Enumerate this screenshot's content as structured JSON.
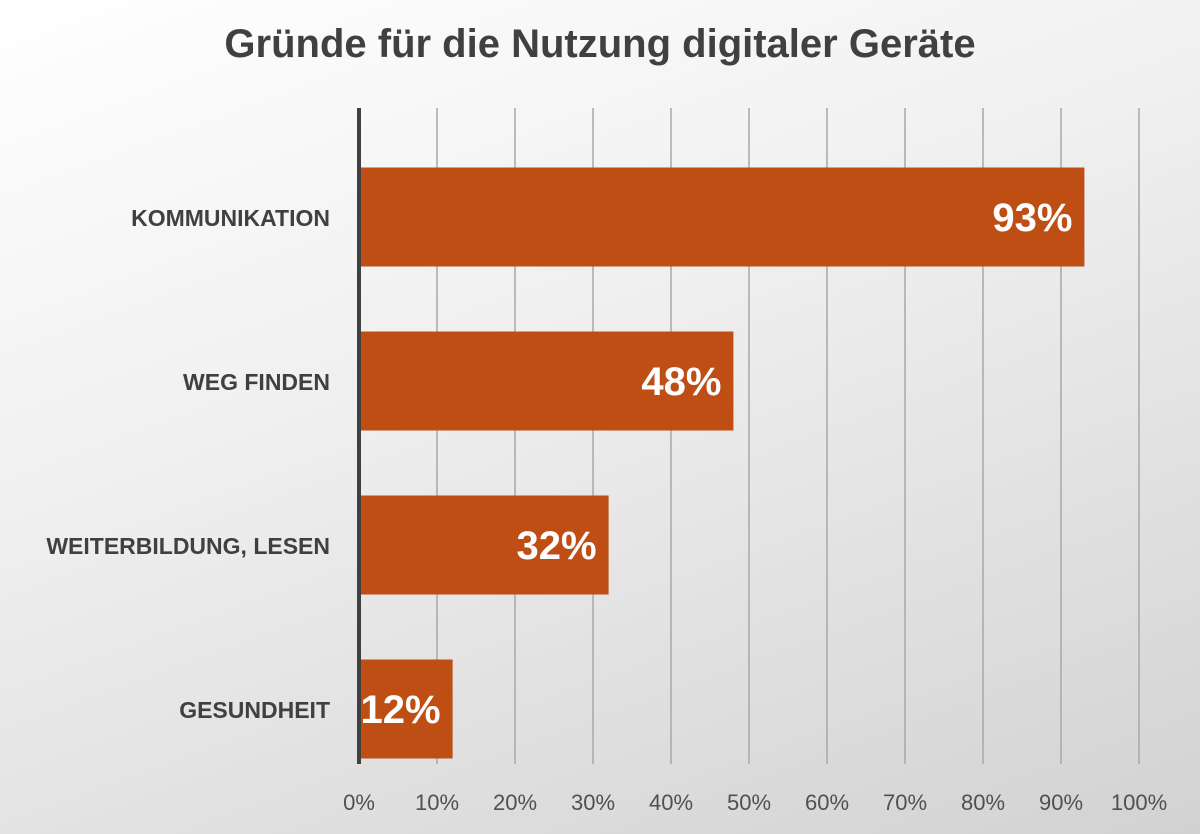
{
  "chart_data": {
    "type": "bar",
    "orientation": "horizontal",
    "title": "Gründe für die Nutzung digitaler Geräte",
    "categories": [
      "KOMMUNIKATION",
      "WEG FINDEN",
      "WEITERBILDUNG, LESEN",
      "GESUNDHEIT"
    ],
    "values": [
      93,
      48,
      32,
      12
    ],
    "data_labels": [
      "93%",
      "48%",
      "32%",
      "12%"
    ],
    "xlim": [
      0,
      100
    ],
    "x_ticks": [
      "0%",
      "10%",
      "20%",
      "30%",
      "40%",
      "50%",
      "60%",
      "70%",
      "80%",
      "90%",
      "100%"
    ],
    "grid": "vertical",
    "bar_color": "#BF4E14",
    "label_color": "#FFFFFF",
    "text_color": "#404040"
  }
}
